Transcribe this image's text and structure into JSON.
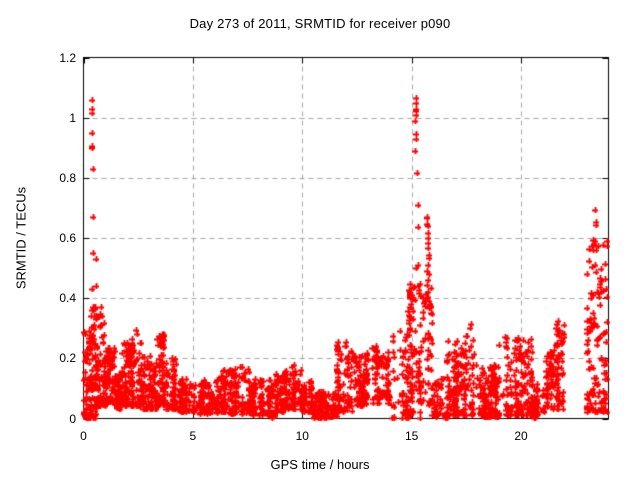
{
  "title": "Day 273 of 2011, SRMTID for receiver p090",
  "chart_data": {
    "type": "scatter",
    "title": "Day 273 of 2011, SRMTID for receiver p090",
    "xlabel": "GPS time / hours",
    "ylabel": "SRMTID / TECUs",
    "xlim": [
      0,
      24
    ],
    "ylim": [
      0,
      1.2
    ],
    "xtick_values": [
      0,
      5,
      10,
      15,
      20
    ],
    "xtick_labels": [
      "0",
      "5",
      "10",
      "15",
      "20"
    ],
    "ytick_values": [
      0,
      0.2,
      0.4,
      0.6,
      0.8,
      1.0,
      1.2
    ],
    "ytick_labels": [
      "0",
      "0.2",
      "0.4",
      "0.6",
      "0.8",
      "1",
      "1.2"
    ],
    "grid": true,
    "legend": false,
    "marker": {
      "shape": "plus",
      "color": "#ff0000",
      "size": 7
    },
    "grid_color": "#a6a6a6",
    "border_color": "#000000",
    "outlier_points": [
      [
        0.38,
        1.06
      ],
      [
        0.37,
        1.03
      ],
      [
        0.38,
        1.015
      ],
      [
        0.4,
        0.95
      ],
      [
        0.38,
        0.905
      ],
      [
        0.41,
        0.9
      ],
      [
        0.42,
        0.83
      ],
      [
        0.42,
        0.67
      ],
      [
        0.42,
        0.55
      ],
      [
        0.4,
        0.43
      ],
      [
        0.55,
        0.53
      ],
      [
        0.56,
        0.44
      ],
      [
        0.05,
        0.155
      ],
      [
        0.08,
        0.135
      ],
      [
        0.82,
        0.37
      ],
      [
        0.85,
        0.34
      ],
      [
        0.8,
        0.31
      ],
      [
        15.18,
        1.065
      ],
      [
        15.21,
        1.05
      ],
      [
        15.19,
        1.028
      ],
      [
        15.2,
        1.022
      ],
      [
        15.22,
        1.01
      ],
      [
        15.15,
        0.99
      ],
      [
        15.22,
        0.945
      ],
      [
        15.22,
        0.93
      ],
      [
        15.16,
        0.89
      ],
      [
        15.23,
        0.815
      ],
      [
        15.3,
        0.71
      ],
      [
        15.3,
        0.637
      ],
      [
        15.28,
        0.51
      ],
      [
        15.2,
        0.5
      ],
      [
        15.7,
        0.67
      ],
      [
        15.68,
        0.668
      ],
      [
        15.72,
        0.648
      ],
      [
        15.75,
        0.64
      ],
      [
        15.73,
        0.617
      ],
      [
        15.76,
        0.6
      ],
      [
        15.74,
        0.585
      ],
      [
        15.76,
        0.568
      ],
      [
        15.8,
        0.545
      ],
      [
        15.78,
        0.535
      ],
      [
        15.74,
        0.51
      ],
      [
        15.7,
        0.49
      ],
      [
        15.8,
        0.48
      ],
      [
        15.76,
        0.462
      ],
      [
        15.7,
        0.445
      ],
      [
        15.74,
        0.42
      ],
      [
        15.68,
        0.4
      ],
      [
        15.78,
        0.39
      ],
      [
        23.4,
        0.692
      ],
      [
        23.44,
        0.652
      ],
      [
        23.45,
        0.642
      ],
      [
        23.38,
        0.59
      ],
      [
        23.5,
        0.575
      ],
      [
        23.42,
        0.56
      ],
      [
        17.7,
        0.315
      ],
      [
        17.66,
        0.3
      ],
      [
        12.0,
        0.255
      ],
      [
        11.95,
        0.24
      ],
      [
        3.45,
        0.275
      ],
      [
        3.5,
        0.27
      ],
      [
        3.48,
        0.255
      ],
      [
        2.42,
        0.295
      ],
      [
        2.45,
        0.28
      ],
      [
        21.7,
        0.325
      ],
      [
        21.65,
        0.315
      ],
      [
        21.6,
        0.3
      ]
    ],
    "cluster_fields": [
      "x_start",
      "x_end",
      "y_low",
      "y_high",
      "n_points",
      "low_skew",
      "y_high_at_end_optional"
    ],
    "clusters": [
      [
        0.03,
        0.3,
        0.0,
        0.3,
        50,
        1.8
      ],
      [
        0.15,
        0.3,
        0.0,
        0.015,
        10,
        1.0
      ],
      [
        0.3,
        0.55,
        0.0,
        0.38,
        60,
        1.5
      ],
      [
        0.55,
        1.05,
        0.04,
        0.37,
        70,
        1.6
      ],
      [
        1.0,
        1.45,
        0.05,
        0.24,
        80,
        1.5
      ],
      [
        1.45,
        1.75,
        0.03,
        0.15,
        50,
        1.3
      ],
      [
        1.75,
        2.2,
        0.04,
        0.26,
        80,
        1.5
      ],
      [
        2.2,
        2.7,
        0.04,
        0.28,
        70,
        1.8
      ],
      [
        2.7,
        3.3,
        0.03,
        0.21,
        80,
        1.5
      ],
      [
        3.3,
        3.7,
        0.04,
        0.28,
        60,
        1.3
      ],
      [
        3.7,
        4.4,
        0.03,
        0.22,
        80,
        1.8
      ],
      [
        4.4,
        5.3,
        0.02,
        0.13,
        90,
        1.4
      ],
      [
        5.3,
        6.1,
        0.015,
        0.13,
        90,
        1.4
      ],
      [
        6.1,
        6.7,
        0.02,
        0.16,
        70,
        1.5
      ],
      [
        6.7,
        7.7,
        0.015,
        0.17,
        110,
        1.6
      ],
      [
        7.7,
        8.65,
        0.01,
        0.13,
        100,
        1.5
      ],
      [
        8.6,
        8.75,
        0.0,
        0.02,
        12,
        1.0
      ],
      [
        8.65,
        9.2,
        0.02,
        0.15,
        70,
        1.4
      ],
      [
        9.2,
        10.0,
        0.03,
        0.18,
        90,
        1.5
      ],
      [
        10.0,
        10.45,
        0.02,
        0.13,
        50,
        1.4
      ],
      [
        10.45,
        11.6,
        0.0,
        0.09,
        130,
        1.3
      ],
      [
        11.6,
        12.3,
        0.02,
        0.26,
        80,
        1.7
      ],
      [
        12.3,
        13.2,
        0.04,
        0.22,
        90,
        1.5
      ],
      [
        13.2,
        14.1,
        0.05,
        0.24,
        90,
        1.4
      ],
      [
        14.1,
        14.85,
        0.0,
        0.3,
        55,
        1.7
      ],
      [
        14.85,
        15.45,
        0.0,
        0.45,
        90,
        1.2
      ],
      [
        15.5,
        15.95,
        0.03,
        0.45,
        45,
        1.1
      ],
      [
        15.95,
        16.45,
        0.0,
        0.14,
        35,
        1.4
      ],
      [
        16.45,
        16.6,
        0.0,
        0.02,
        10,
        1.0
      ],
      [
        16.5,
        17.3,
        0.01,
        0.26,
        90,
        1.8
      ],
      [
        17.35,
        17.85,
        0.01,
        0.3,
        60,
        1.6
      ],
      [
        17.85,
        19.0,
        0.005,
        0.18,
        150,
        1.7
      ],
      [
        19.0,
        20.5,
        0.01,
        0.27,
        150,
        1.9
      ],
      [
        20.55,
        20.72,
        0.0,
        0.02,
        10,
        1.0
      ],
      [
        20.5,
        21.05,
        0.01,
        0.12,
        40,
        1.4
      ],
      [
        21.0,
        21.95,
        0.03,
        0.18,
        110,
        1.2,
        0.33
      ],
      [
        23.0,
        23.95,
        0.02,
        0.6,
        120,
        1.6
      ]
    ],
    "seed": 20110273
  }
}
